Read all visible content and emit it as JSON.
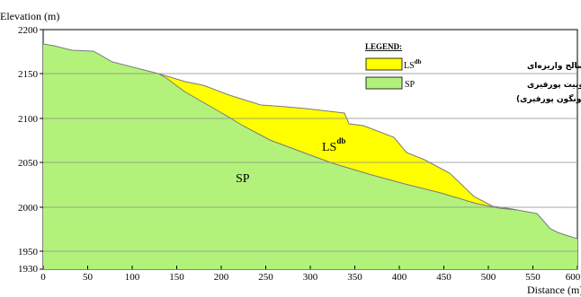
{
  "axes": {
    "y_title": "Elevation (m)",
    "x_title": "Distance (m)",
    "y_ticks": [
      "2200",
      "2150",
      "2100",
      "2050",
      "2000",
      "1950",
      "1930"
    ],
    "x_ticks": [
      "0",
      "50",
      "100",
      "150",
      "200",
      "250",
      "300",
      "350",
      "400",
      "450",
      "500",
      "550",
      "600"
    ]
  },
  "legend": {
    "title": "LEGEND:",
    "items": [
      {
        "code": "LS",
        "code_sup": "db",
        "lines": [
          "مصالح واریزه‌ای"
        ],
        "color": "#ffff00"
      },
      {
        "code": "SP",
        "code_sup": "",
        "lines": [
          "مصالح مونزونیت پورفیری",
          "(سونگون پورفیری)"
        ],
        "color": "#b3f27a"
      }
    ]
  },
  "units": {
    "ls": {
      "code": "LS",
      "sup": "db"
    },
    "sp": {
      "code": "SP"
    }
  },
  "colors": {
    "sp_fill": "#b3f27a",
    "ls_fill": "#ffff00",
    "outline": "#7a7a7a",
    "grid": "#8a8a8a"
  }
}
